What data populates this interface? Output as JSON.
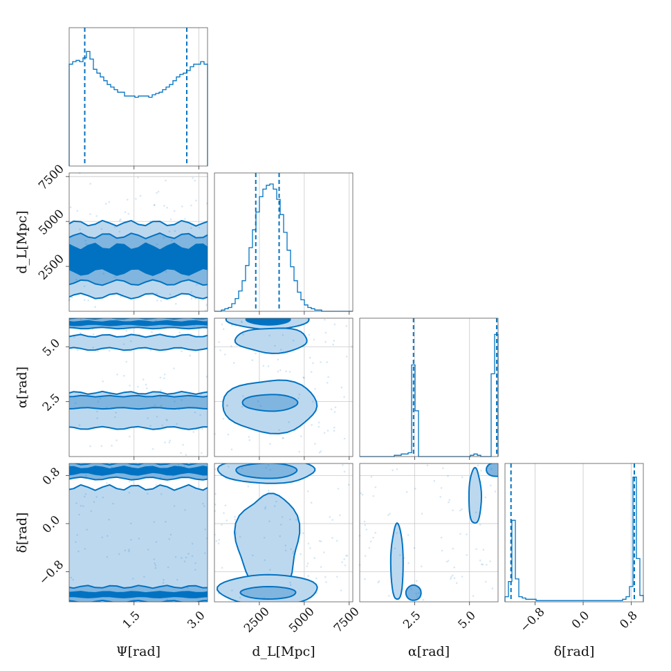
{
  "chart_data": {
    "type": "corner",
    "parameters": [
      {
        "id": "psi",
        "label": "Ψ[rad]",
        "range": [
          0.0,
          3.2
        ],
        "ticks": [
          1.5,
          3.0
        ],
        "tick_labels": [
          "1.5",
          "3.0"
        ],
        "quantiles": [
          0.36,
          2.72
        ]
      },
      {
        "id": "dl",
        "label": "d_L[Mpc]",
        "range": [
          0,
          7700
        ],
        "ticks": [
          2500,
          5000,
          7500
        ],
        "tick_labels": [
          "2500",
          "5000",
          "7500"
        ],
        "quantiles": [
          2300,
          3600
        ]
      },
      {
        "id": "alpha",
        "label": "α[rad]",
        "range": [
          0.0,
          6.3
        ],
        "ticks": [
          2.5,
          5.0
        ],
        "tick_labels": [
          "2.5",
          "5.0"
        ],
        "quantiles": [
          2.45,
          6.24
        ]
      },
      {
        "id": "delta",
        "label": "δ[rad]",
        "range": [
          -1.3,
          1.0
        ],
        "ticks": [
          -0.8,
          0.0,
          0.8
        ],
        "tick_labels": [
          "−0.8",
          "0.0",
          "0.8"
        ],
        "quantiles": [
          -1.2,
          0.85
        ]
      }
    ],
    "histograms": {
      "psi": [
        0.8,
        0.82,
        0.83,
        0.82,
        0.85,
        0.9,
        0.84,
        0.76,
        0.73,
        0.7,
        0.67,
        0.64,
        0.62,
        0.6,
        0.58,
        0.58,
        0.55,
        0.55,
        0.55,
        0.54,
        0.55,
        0.55,
        0.55,
        0.54,
        0.56,
        0.57,
        0.58,
        0.6,
        0.62,
        0.64,
        0.67,
        0.7,
        0.72,
        0.73,
        0.75,
        0.78,
        0.8,
        0.8,
        0.82,
        0.8
      ],
      "dl": [
        0,
        0,
        0.01,
        0.02,
        0.03,
        0.06,
        0.1,
        0.16,
        0.24,
        0.36,
        0.5,
        0.64,
        0.78,
        0.9,
        0.96,
        0.99,
        1.0,
        0.96,
        0.88,
        0.76,
        0.62,
        0.48,
        0.35,
        0.24,
        0.15,
        0.09,
        0.05,
        0.03,
        0.02,
        0.01,
        0.01,
        0,
        0,
        0,
        0,
        0,
        0,
        0,
        0,
        0
      ],
      "alpha": [
        0,
        0,
        0,
        0,
        0,
        0,
        0,
        0,
        0,
        0,
        0.01,
        0.01,
        0.02,
        0.02,
        0.03,
        0.72,
        0.36,
        0,
        0,
        0,
        0,
        0,
        0,
        0,
        0,
        0,
        0,
        0,
        0,
        0,
        0,
        0,
        0.01,
        0.02,
        0.01,
        0,
        0,
        0,
        0.65,
        0.96
      ],
      "delta": [
        0.04,
        0.16,
        0.64,
        0.18,
        0.04,
        0.03,
        0.02,
        0.02,
        0.02,
        0.01,
        0.01,
        0.01,
        0.01,
        0.01,
        0.01,
        0.01,
        0.01,
        0.01,
        0.01,
        0.01,
        0.01,
        0.01,
        0.01,
        0.01,
        0.01,
        0.01,
        0.01,
        0.01,
        0.01,
        0.01,
        0.01,
        0.01,
        0.01,
        0.01,
        0.02,
        0.04,
        0.12,
        0.98,
        0.34,
        0.05
      ]
    },
    "contour_levels": [
      "outer",
      "middle",
      "inner"
    ]
  },
  "colors": {
    "accent": "#0072c1",
    "outer_fill": "#bcd8ef",
    "middle_fill": "#80b5df",
    "inner_fill": "#0072c1"
  }
}
